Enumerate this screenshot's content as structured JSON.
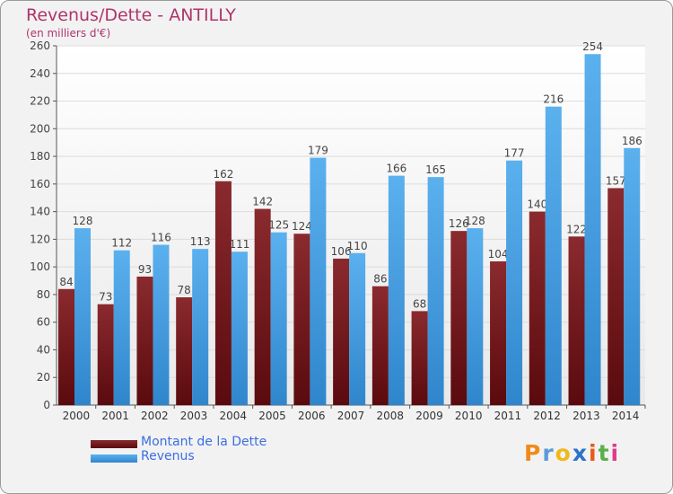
{
  "title": "Revenus/Dette - ANTILLY",
  "subtitle": "(en milliers d'€)",
  "colors": {
    "dette": "#7a1a1e",
    "revenus": "#4aa3e6",
    "title": "#b0346a",
    "legend_text": "#3b6ee0"
  },
  "logo": {
    "text": "Proxiti",
    "letters": [
      "P",
      "r",
      "o",
      "x",
      "i",
      "t",
      "i"
    ],
    "letter_colors": [
      "#f08a1a",
      "#5a9bd8",
      "#f0b81a",
      "#2a74c6",
      "#e85a1a",
      "#5ab04a",
      "#e03a8a"
    ]
  },
  "chart_data": {
    "type": "bar",
    "title": "Revenus/Dette - ANTILLY",
    "subtitle": "(en milliers d'€)",
    "categories": [
      "2000",
      "2001",
      "2002",
      "2003",
      "2004",
      "2005",
      "2006",
      "2007",
      "2008",
      "2009",
      "2010",
      "2011",
      "2012",
      "2013",
      "2014"
    ],
    "series": [
      {
        "name": "Montant de la Dette",
        "values": [
          84,
          73,
          93,
          78,
          162,
          142,
          124,
          106,
          86,
          68,
          126,
          104,
          140,
          122,
          157
        ]
      },
      {
        "name": "Revenus",
        "values": [
          128,
          112,
          116,
          113,
          111,
          125,
          179,
          110,
          166,
          165,
          128,
          177,
          216,
          254,
          186
        ]
      }
    ],
    "ylim": [
      0,
      260
    ],
    "yticks": [
      0,
      20,
      40,
      60,
      80,
      100,
      120,
      140,
      160,
      180,
      200,
      220,
      240,
      260
    ],
    "grid": true,
    "legend_position": "bottom-left"
  }
}
